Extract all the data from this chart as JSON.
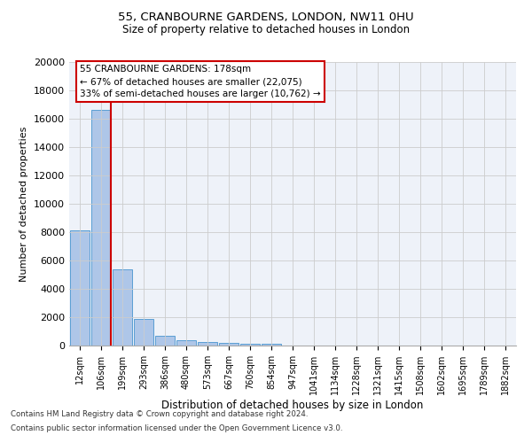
{
  "title1": "55, CRANBOURNE GARDENS, LONDON, NW11 0HU",
  "title2": "Size of property relative to detached houses in London",
  "xlabel": "Distribution of detached houses by size in London",
  "ylabel": "Number of detached properties",
  "bar_labels": [
    "12sqm",
    "106sqm",
    "199sqm",
    "293sqm",
    "386sqm",
    "480sqm",
    "573sqm",
    "667sqm",
    "760sqm",
    "854sqm",
    "947sqm",
    "1041sqm",
    "1134sqm",
    "1228sqm",
    "1321sqm",
    "1415sqm",
    "1508sqm",
    "1602sqm",
    "1695sqm",
    "1789sqm",
    "1882sqm"
  ],
  "bar_values": [
    8100,
    16600,
    5400,
    1900,
    700,
    350,
    220,
    180,
    150,
    100,
    0,
    0,
    0,
    0,
    0,
    0,
    0,
    0,
    0,
    0,
    0
  ],
  "bar_color": "#aec6e8",
  "bar_edge_color": "#5a9fd4",
  "vline_color": "#cc0000",
  "annotation_text": "55 CRANBOURNE GARDENS: 178sqm\n← 67% of detached houses are smaller (22,075)\n33% of semi-detached houses are larger (10,762) →",
  "annotation_box_color": "#ffffff",
  "annotation_box_edge": "#cc0000",
  "ylim": [
    0,
    20000
  ],
  "yticks": [
    0,
    2000,
    4000,
    6000,
    8000,
    10000,
    12000,
    14000,
    16000,
    18000,
    20000
  ],
  "grid_color": "#cccccc",
  "bg_color": "#eef2f9",
  "footer1": "Contains HM Land Registry data © Crown copyright and database right 2024.",
  "footer2": "Contains public sector information licensed under the Open Government Licence v3.0."
}
